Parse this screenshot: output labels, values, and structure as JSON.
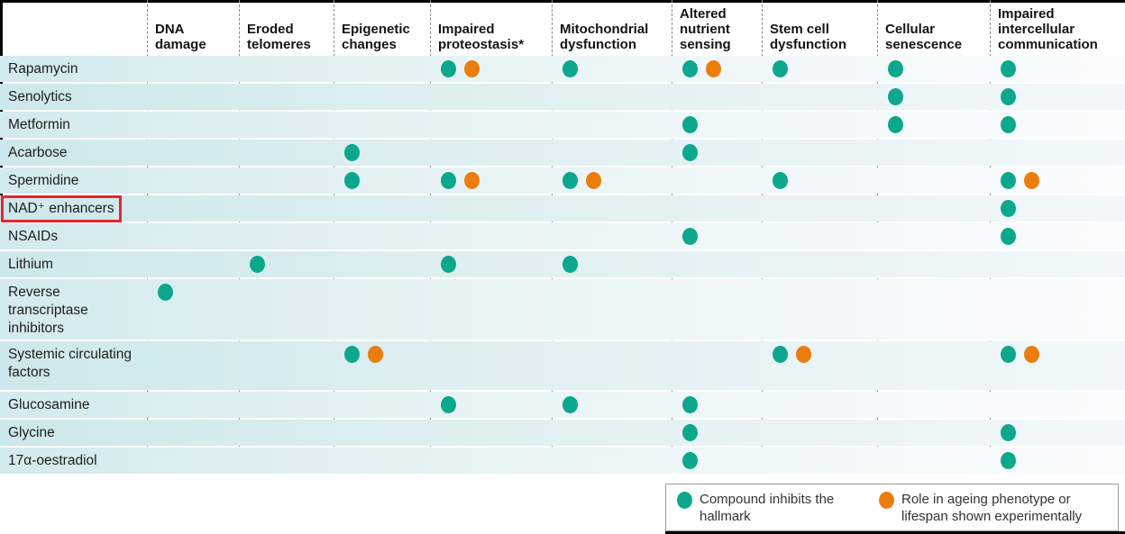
{
  "chart_data": {
    "type": "table",
    "description_of_marks": "dot matrix: teal dot = compound inhibits the hallmark; orange dot = role in ageing phenotype or lifespan shown experimentally; cell codes T=teal, O=orange",
    "columns": [
      "DNA damage",
      "Eroded telomeres",
      "Epigenetic changes",
      "Impaired proteostasis*",
      "Mitochondrial dysfunction",
      "Altered nutrient sensing",
      "Stem cell dysfunction",
      "Cellular senescence",
      "Impaired intercellular communication"
    ],
    "rows": [
      {
        "label": "Rapamycin",
        "cells": [
          "",
          "",
          "",
          "TO",
          "T",
          "TO",
          "T",
          "T",
          "T"
        ]
      },
      {
        "label": "Senolytics",
        "cells": [
          "",
          "",
          "",
          "",
          "",
          "",
          "",
          "T",
          "T"
        ]
      },
      {
        "label": "Metformin",
        "cells": [
          "",
          "",
          "",
          "",
          "",
          "T",
          "",
          "T",
          "T"
        ]
      },
      {
        "label": "Acarbose",
        "cells": [
          "",
          "",
          "T",
          "",
          "",
          "T",
          "",
          "",
          ""
        ]
      },
      {
        "label": "Spermidine",
        "cells": [
          "",
          "",
          "T",
          "TO",
          "TO",
          "",
          "T",
          "",
          "TO"
        ]
      },
      {
        "label": "NAD⁺ enhancers",
        "cells": [
          "",
          "",
          "",
          "",
          "",
          "",
          "",
          "",
          "T"
        ]
      },
      {
        "label": "NSAIDs",
        "cells": [
          "",
          "",
          "",
          "",
          "",
          "T",
          "",
          "",
          "T"
        ]
      },
      {
        "label": "Lithium",
        "cells": [
          "",
          "T",
          "",
          "T",
          "T",
          "",
          "",
          "",
          ""
        ]
      },
      {
        "label": "Reverse transcriptase inhibitors",
        "cells": [
          "T",
          "",
          "",
          "",
          "",
          "",
          "",
          "",
          ""
        ]
      },
      {
        "label": "Systemic circulating factors",
        "cells": [
          "",
          "",
          "TO",
          "",
          "",
          "",
          "TO",
          "",
          "TO"
        ]
      },
      {
        "label": "Glucosamine",
        "cells": [
          "",
          "",
          "",
          "T",
          "T",
          "T",
          "",
          "",
          ""
        ]
      },
      {
        "label": "Glycine",
        "cells": [
          "",
          "",
          "",
          "",
          "",
          "T",
          "",
          "",
          "T"
        ]
      },
      {
        "label": "17α-oestradiol",
        "cells": [
          "",
          "",
          "",
          "",
          "",
          "T",
          "",
          "",
          "T"
        ]
      }
    ],
    "highlighted_row": "NAD⁺ enhancers",
    "legend_position": "bottom-right"
  },
  "legend": {
    "items": [
      {
        "color": "#0ca78d",
        "icon": "teal-dot",
        "label": "Compound inhibits the hallmark"
      },
      {
        "color": "#ec7d0c",
        "icon": "orange-dot",
        "label": "Role in ageing phenotype or lifespan shown experimentally"
      }
    ]
  },
  "colors": {
    "inhibits_dot": "#0ca78d",
    "experimental_dot": "#ec7d0c",
    "highlight_box": "#e5272c",
    "row_band": "#d3eaee"
  }
}
